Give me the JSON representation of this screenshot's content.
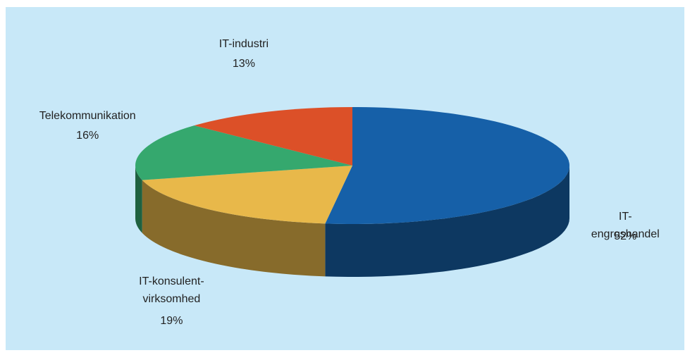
{
  "chart_data": {
    "type": "pie3d",
    "categories": [
      "IT-engroshandel",
      "IT-konsulent-\nvirksomhed",
      "Telekommunikation",
      "IT-industri"
    ],
    "values": [
      52,
      19,
      16,
      13
    ],
    "value_labels": [
      "52%",
      "19%",
      "16%",
      "13%"
    ],
    "colors": [
      "#1660a8",
      "#e8b84a",
      "#35a86e",
      "#dc5028"
    ],
    "background": "#c8e8f8"
  }
}
